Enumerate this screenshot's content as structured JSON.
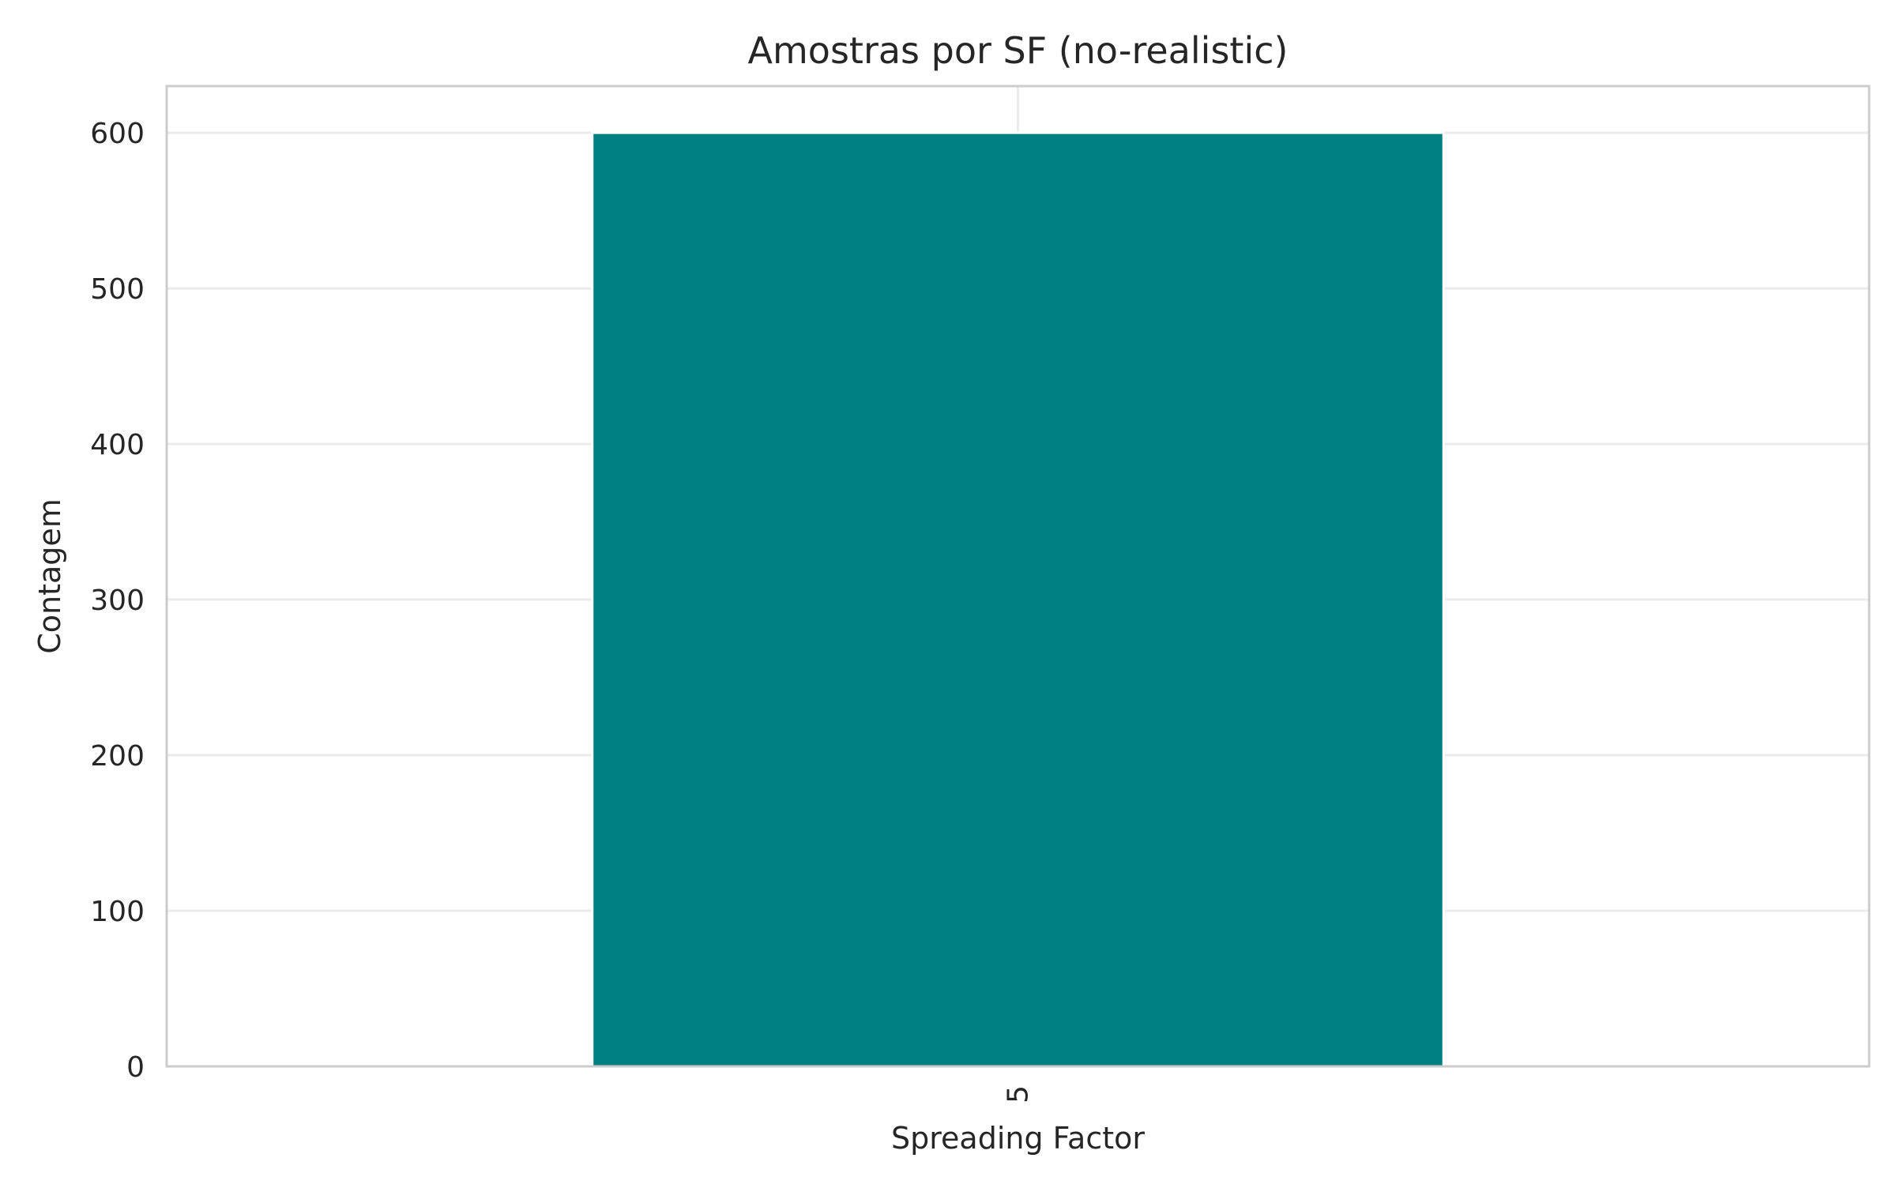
{
  "chart_data": {
    "type": "bar",
    "title": "Amostras por SF (no-realistic)",
    "xlabel": "Spreading Factor",
    "ylabel": "Contagem",
    "categories": [
      "5"
    ],
    "values": [
      600
    ],
    "ylim": [
      0,
      630
    ],
    "yticks": [
      0,
      100,
      200,
      300,
      400,
      500,
      600
    ],
    "x_tick_rotation": 90,
    "grid": "horizontal",
    "legend": "none",
    "colors": {
      "bar": "#008080",
      "background": "#ffffff",
      "grid": "#ebebeb",
      "spine": "#cccccc",
      "text": "#262626"
    }
  }
}
